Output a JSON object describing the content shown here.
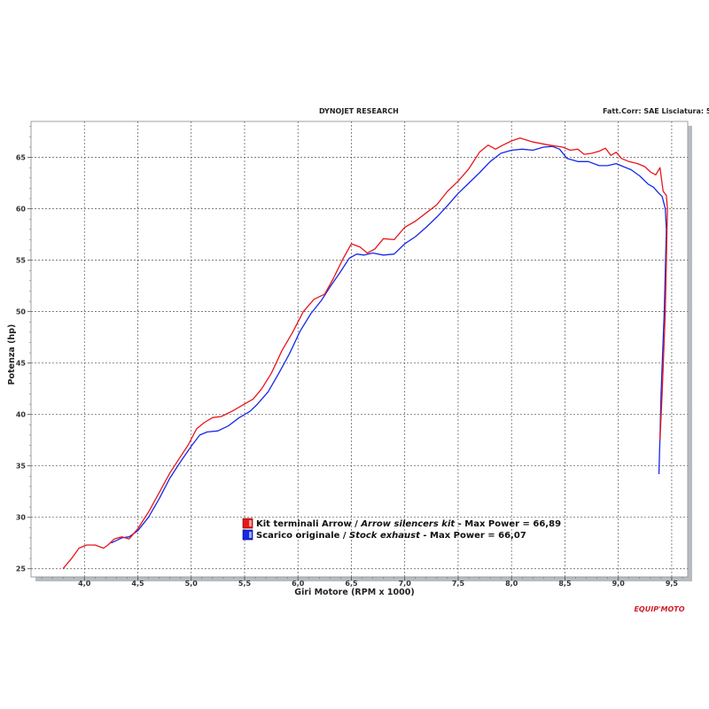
{
  "header": {
    "title": "DYNOJET RESEARCH",
    "right_text": "Fatt.Corr: SAE  Lisciatura: 5"
  },
  "logo": {
    "text": "EQUIP'MOTO"
  },
  "colors": {
    "arrow": "#e8161b",
    "stock": "#1528e8",
    "grid": "#555555",
    "frame": "#9aa0a6",
    "shadow": "#b7bcc2"
  },
  "chart_data": {
    "type": "line",
    "xlabel": "Giri Motore (RPM x 1000)",
    "ylabel": "Potenza (hp)",
    "xlim": [
      3.5,
      9.65
    ],
    "ylim": [
      24.2,
      68.5
    ],
    "grid": true,
    "legend_position": "bottom-left",
    "x_ticks": [
      "4,0",
      "4,5",
      "5,0",
      "5,5",
      "6,0",
      "6,5",
      "7,0",
      "7,5",
      "8,0",
      "8,5",
      "9,0",
      "9,5"
    ],
    "x_tick_values": [
      4.0,
      4.5,
      5.0,
      5.5,
      6.0,
      6.5,
      7.0,
      7.5,
      8.0,
      8.5,
      9.0,
      9.5
    ],
    "y_ticks": [
      "25",
      "30",
      "35",
      "40",
      "45",
      "50",
      "55",
      "60",
      "65"
    ],
    "y_tick_values": [
      25,
      30,
      35,
      40,
      45,
      50,
      55,
      60,
      65
    ],
    "series": [
      {
        "name": "Kit terminali Arrow / Arrow silencers kit - Max Power = 66,89",
        "name_plain": "Kit terminali Arrow / ",
        "name_italic": "Arrow silencers kit",
        "name_tail": " - Max Power = 66,89",
        "color": "#e8161b",
        "points": [
          [
            3.8,
            25.0
          ],
          [
            3.88,
            26.0
          ],
          [
            3.95,
            27.0
          ],
          [
            4.02,
            27.3
          ],
          [
            4.1,
            27.3
          ],
          [
            4.18,
            27.0
          ],
          [
            4.22,
            27.3
          ],
          [
            4.28,
            27.9
          ],
          [
            4.35,
            28.1
          ],
          [
            4.42,
            27.9
          ],
          [
            4.5,
            28.9
          ],
          [
            4.6,
            30.5
          ],
          [
            4.7,
            32.4
          ],
          [
            4.8,
            34.3
          ],
          [
            4.9,
            35.9
          ],
          [
            4.97,
            37.0
          ],
          [
            5.05,
            38.6
          ],
          [
            5.12,
            39.2
          ],
          [
            5.2,
            39.7
          ],
          [
            5.28,
            39.8
          ],
          [
            5.38,
            40.3
          ],
          [
            5.48,
            40.9
          ],
          [
            5.58,
            41.5
          ],
          [
            5.66,
            42.5
          ],
          [
            5.75,
            44.0
          ],
          [
            5.85,
            46.2
          ],
          [
            5.95,
            48.0
          ],
          [
            6.05,
            50.0
          ],
          [
            6.15,
            51.2
          ],
          [
            6.25,
            51.7
          ],
          [
            6.33,
            53.2
          ],
          [
            6.42,
            55.1
          ],
          [
            6.5,
            56.6
          ],
          [
            6.58,
            56.3
          ],
          [
            6.65,
            55.7
          ],
          [
            6.72,
            56.1
          ],
          [
            6.8,
            57.1
          ],
          [
            6.9,
            57.0
          ],
          [
            7.0,
            58.2
          ],
          [
            7.1,
            58.8
          ],
          [
            7.2,
            59.6
          ],
          [
            7.3,
            60.4
          ],
          [
            7.4,
            61.7
          ],
          [
            7.5,
            62.7
          ],
          [
            7.6,
            63.9
          ],
          [
            7.7,
            65.5
          ],
          [
            7.78,
            66.2
          ],
          [
            7.85,
            65.8
          ],
          [
            7.92,
            66.2
          ],
          [
            8.0,
            66.6
          ],
          [
            8.08,
            66.89
          ],
          [
            8.2,
            66.5
          ],
          [
            8.35,
            66.2
          ],
          [
            8.48,
            66.0
          ],
          [
            8.55,
            65.7
          ],
          [
            8.62,
            65.8
          ],
          [
            8.68,
            65.3
          ],
          [
            8.75,
            65.4
          ],
          [
            8.82,
            65.6
          ],
          [
            8.88,
            65.9
          ],
          [
            8.93,
            65.2
          ],
          [
            8.98,
            65.5
          ],
          [
            9.03,
            64.9
          ],
          [
            9.1,
            64.6
          ],
          [
            9.18,
            64.4
          ],
          [
            9.25,
            64.1
          ],
          [
            9.3,
            63.6
          ],
          [
            9.35,
            63.3
          ],
          [
            9.39,
            64.0
          ],
          [
            9.42,
            61.7
          ],
          [
            9.45,
            61.3
          ],
          [
            9.46,
            60.0
          ],
          [
            9.44,
            50.0
          ],
          [
            9.41,
            42.0
          ],
          [
            9.39,
            37.5
          ]
        ]
      },
      {
        "name": "Scarico originale / Stock exhaust - Max Power = 66,07",
        "name_plain": "Scarico originale / ",
        "name_italic": "Stock exhaust",
        "name_tail": " - Max Power = 66,07",
        "color": "#1528e8",
        "points": [
          [
            4.25,
            27.5
          ],
          [
            4.35,
            28.0
          ],
          [
            4.42,
            28.1
          ],
          [
            4.5,
            28.7
          ],
          [
            4.6,
            30.0
          ],
          [
            4.7,
            31.8
          ],
          [
            4.8,
            33.8
          ],
          [
            4.9,
            35.4
          ],
          [
            5.0,
            36.9
          ],
          [
            5.08,
            38.0
          ],
          [
            5.15,
            38.3
          ],
          [
            5.25,
            38.4
          ],
          [
            5.35,
            38.9
          ],
          [
            5.45,
            39.7
          ],
          [
            5.55,
            40.3
          ],
          [
            5.62,
            41.0
          ],
          [
            5.72,
            42.2
          ],
          [
            5.82,
            44.0
          ],
          [
            5.92,
            45.9
          ],
          [
            6.02,
            48.1
          ],
          [
            6.12,
            49.8
          ],
          [
            6.22,
            51.1
          ],
          [
            6.3,
            52.4
          ],
          [
            6.4,
            53.9
          ],
          [
            6.48,
            55.2
          ],
          [
            6.55,
            55.6
          ],
          [
            6.62,
            55.5
          ],
          [
            6.7,
            55.7
          ],
          [
            6.8,
            55.5
          ],
          [
            6.9,
            55.6
          ],
          [
            7.0,
            56.6
          ],
          [
            7.1,
            57.3
          ],
          [
            7.2,
            58.2
          ],
          [
            7.3,
            59.2
          ],
          [
            7.4,
            60.3
          ],
          [
            7.5,
            61.5
          ],
          [
            7.6,
            62.5
          ],
          [
            7.7,
            63.5
          ],
          [
            7.8,
            64.6
          ],
          [
            7.9,
            65.4
          ],
          [
            8.0,
            65.7
          ],
          [
            8.1,
            65.8
          ],
          [
            8.2,
            65.7
          ],
          [
            8.3,
            66.0
          ],
          [
            8.38,
            66.07
          ],
          [
            8.45,
            65.8
          ],
          [
            8.52,
            64.9
          ],
          [
            8.62,
            64.6
          ],
          [
            8.72,
            64.6
          ],
          [
            8.82,
            64.2
          ],
          [
            8.9,
            64.2
          ],
          [
            8.98,
            64.4
          ],
          [
            9.05,
            64.1
          ],
          [
            9.12,
            63.8
          ],
          [
            9.2,
            63.2
          ],
          [
            9.28,
            62.4
          ],
          [
            9.33,
            62.1
          ],
          [
            9.38,
            61.5
          ],
          [
            9.41,
            61.2
          ],
          [
            9.44,
            60.0
          ],
          [
            9.45,
            58.0
          ],
          [
            9.43,
            50.0
          ],
          [
            9.4,
            42.0
          ],
          [
            9.39,
            37.8
          ],
          [
            9.38,
            34.2
          ]
        ]
      }
    ]
  }
}
